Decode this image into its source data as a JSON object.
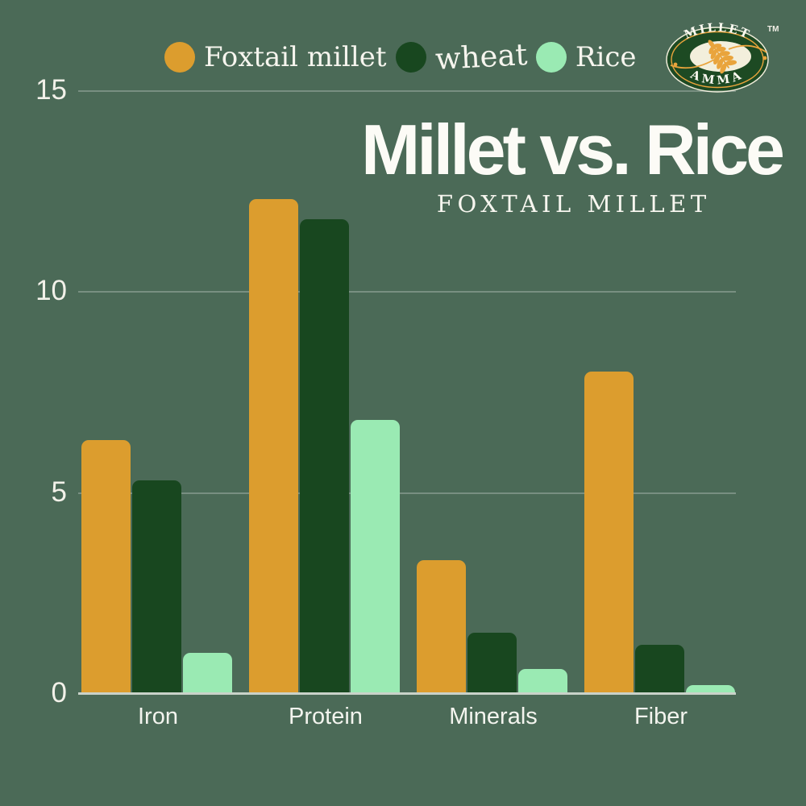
{
  "title": {
    "main": "Millet vs. Rice",
    "subtitle": "FOXTAIL MILLET"
  },
  "logo": {
    "arc_top": "MILLET",
    "arc_bottom": "AMMA",
    "trademark": "TM",
    "colors": {
      "badge_green": "#1D4A23",
      "cream": "#F3EFDC",
      "gold": "#E9A43C",
      "rim": "#EFEBD8"
    }
  },
  "colors": {
    "background": "#4B6A57",
    "text": "#F6F5EE",
    "gridline": "rgba(255,255,255,0.25)",
    "baseline": "#C9D2C9"
  },
  "chart_data": {
    "type": "bar",
    "title": "Millet vs. Rice",
    "subtitle": "FOXTAIL MILLET",
    "categories": [
      "Iron",
      "Protein",
      "Minerals",
      "Fiber"
    ],
    "series": [
      {
        "name": "Foxtail millet",
        "color": "#DC9D2E",
        "values": [
          6.3,
          12.3,
          3.3,
          8.0
        ]
      },
      {
        "name": "wheat",
        "color": "#18471F",
        "values": [
          5.3,
          11.8,
          1.5,
          1.2
        ]
      },
      {
        "name": "Rice",
        "color": "#9AEAB3",
        "values": [
          1.0,
          6.8,
          0.6,
          0.2
        ]
      }
    ],
    "ylim": [
      0,
      15
    ],
    "y_ticks": [
      0,
      5,
      10,
      15
    ],
    "grid": "horizontal",
    "legend_position": "top"
  }
}
